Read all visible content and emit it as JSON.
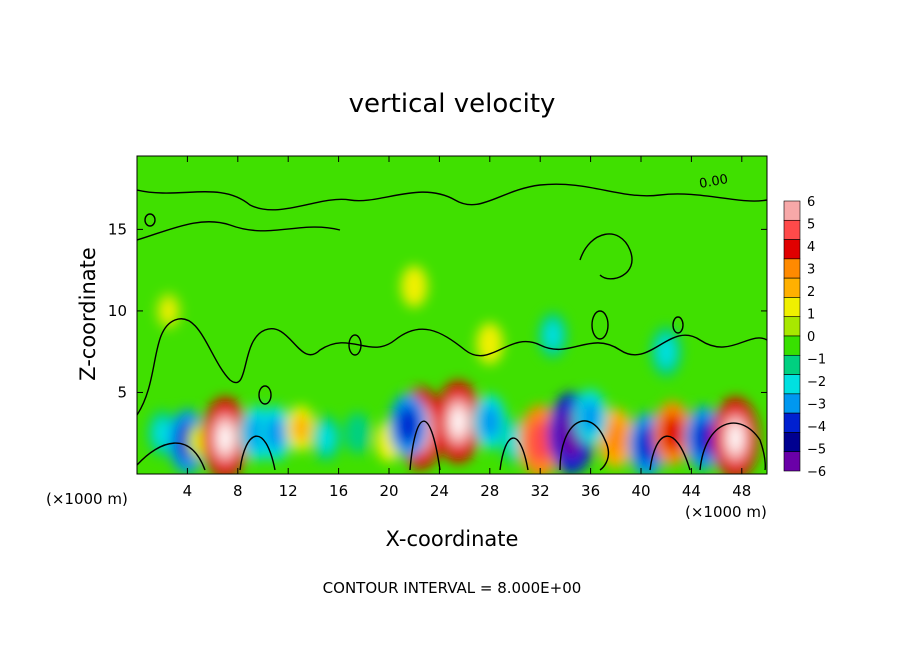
{
  "chart_data": {
    "type": "heatmap",
    "title": "vertical velocity",
    "xlabel": "X-coordinate",
    "ylabel": "Z-coordinate",
    "x_unit": "(×1000 m)",
    "x_unit_right": "(×1000 m)",
    "xlim": [
      0,
      50
    ],
    "ylim": [
      0,
      19.5
    ],
    "x_ticks": [
      4,
      8,
      12,
      16,
      20,
      24,
      28,
      32,
      36,
      40,
      44,
      48
    ],
    "y_ticks": [
      5,
      10,
      15
    ],
    "contour_label": "0.00",
    "contour_interval_text": "CONTOUR INTERVAL = 8.000E+00",
    "colorbar": {
      "levels": [
        "6",
        "5",
        "4",
        "3",
        "2",
        "1",
        "0",
        "−1",
        "−2",
        "−3",
        "−4",
        "−5",
        "−6"
      ],
      "colors": [
        "#f7a8a8",
        "#ff4a4a",
        "#e00000",
        "#ff8a00",
        "#ffb000",
        "#f0f000",
        "#a8e800",
        "#38e000",
        "#00d080",
        "#00e0e0",
        "#0098f0",
        "#0020d0",
        "#000090",
        "#6a00a8"
      ]
    },
    "cells": [
      {
        "x": 2,
        "z": 2.5,
        "w": -2
      },
      {
        "x": 4,
        "z": 2,
        "w": -4
      },
      {
        "x": 5,
        "z": 2,
        "w": 1
      },
      {
        "x": 7,
        "z": 2.2,
        "w": 6
      },
      {
        "x": 9.5,
        "z": 2.5,
        "w": -3
      },
      {
        "x": 11,
        "z": 2.5,
        "w": -3
      },
      {
        "x": 13,
        "z": 2.8,
        "w": 2
      },
      {
        "x": 15,
        "z": 2.2,
        "w": -2
      },
      {
        "x": 17.5,
        "z": 2.5,
        "w": -1.5
      },
      {
        "x": 20,
        "z": 2,
        "w": 1.5
      },
      {
        "x": 22.5,
        "z": 2.8,
        "w": 6
      },
      {
        "x": 21.5,
        "z": 3,
        "w": -4
      },
      {
        "x": 25.5,
        "z": 3.2,
        "w": 6
      },
      {
        "x": 28,
        "z": 3.2,
        "w": -3
      },
      {
        "x": 30,
        "z": 2,
        "w": -2
      },
      {
        "x": 32,
        "z": 2,
        "w": 5
      },
      {
        "x": 34.5,
        "z": 2.5,
        "w": -6
      },
      {
        "x": 38,
        "z": 2.2,
        "w": 3.5
      },
      {
        "x": 40.5,
        "z": 1.8,
        "w": -4
      },
      {
        "x": 42.5,
        "z": 2.5,
        "w": 4
      },
      {
        "x": 45,
        "z": 2.2,
        "w": -4
      },
      {
        "x": 47.5,
        "z": 2.2,
        "w": 6
      },
      {
        "x": 36,
        "z": 3.5,
        "w": -3
      },
      {
        "x": 33,
        "z": 8.5,
        "w": -2
      },
      {
        "x": 42,
        "z": 7.5,
        "w": -2.5
      },
      {
        "x": 22,
        "z": 11.5,
        "w": 1.5
      },
      {
        "x": 28,
        "z": 8,
        "w": 1.5
      },
      {
        "x": 2.5,
        "z": 10,
        "w": 1
      }
    ]
  }
}
